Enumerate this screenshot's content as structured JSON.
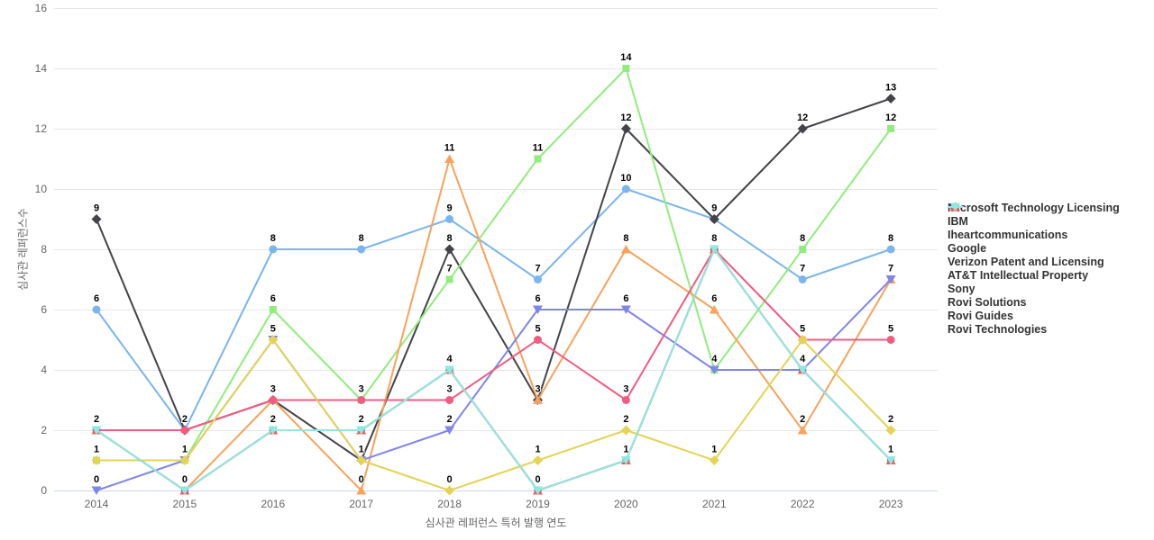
{
  "chart_data": {
    "type": "line",
    "title": "",
    "xlabel": "심사관 레퍼런스 특허 발행 연도",
    "ylabel": "심사관 레퍼런스수",
    "categories": [
      "2014",
      "2015",
      "2016",
      "2017",
      "2018",
      "2019",
      "2020",
      "2021",
      "2022",
      "2023"
    ],
    "yticks": [
      0,
      2,
      4,
      6,
      8,
      10,
      12,
      14,
      16
    ],
    "ylim": [
      0,
      16
    ],
    "grid": "horizontal",
    "legend_position": "right-middle",
    "axis_line_color": "#ccd6eb",
    "grid_color": "#e6e6e6",
    "series": [
      {
        "name": "Microsoft Technology Licensing",
        "color": "#7cb5ec",
        "marker": "circle",
        "values": [
          6,
          2,
          8,
          8,
          9,
          7,
          10,
          9,
          7,
          8
        ]
      },
      {
        "name": "IBM",
        "color": "#434348",
        "marker": "diamond",
        "values": [
          9,
          2,
          3,
          1,
          8,
          3,
          12,
          9,
          12,
          13
        ]
      },
      {
        "name": "Iheartcommunications",
        "color": "#90ed7d",
        "marker": "square",
        "values": [
          1,
          1,
          6,
          3,
          7,
          11,
          14,
          4,
          8,
          12
        ]
      },
      {
        "name": "Google",
        "color": "#f7a35c",
        "marker": "triangle",
        "values": [
          null,
          0,
          3,
          0,
          11,
          3,
          8,
          6,
          2,
          7
        ]
      },
      {
        "name": "Verizon Patent and Licensing",
        "color": "#8085e9",
        "marker": "triangle-down",
        "values": [
          0,
          1,
          5,
          1,
          2,
          6,
          6,
          4,
          4,
          7
        ]
      },
      {
        "name": "AT&T Intellectual Property",
        "color": "#f15c80",
        "marker": "circle",
        "values": [
          2,
          2,
          3,
          3,
          3,
          5,
          3,
          8,
          5,
          5
        ]
      },
      {
        "name": "Sony",
        "color": "#e4d354",
        "marker": "diamond",
        "values": [
          1,
          1,
          5,
          1,
          0,
          1,
          2,
          1,
          5,
          2
        ]
      },
      {
        "name": "Rovi Solutions",
        "color": "#2b908f",
        "marker": "square",
        "values": [
          2,
          0,
          2,
          2,
          4,
          0,
          1,
          8,
          4,
          1
        ]
      },
      {
        "name": "Rovi Guides",
        "color": "#f45b5b",
        "marker": "triangle",
        "values": [
          2,
          0,
          2,
          2,
          4,
          0,
          1,
          8,
          4,
          1
        ]
      },
      {
        "name": "Rovi Technologies",
        "color": "#91e8e1",
        "marker": "triangle-down",
        "values": [
          2,
          0,
          2,
          2,
          4,
          0,
          1,
          8,
          4,
          1
        ]
      }
    ]
  }
}
